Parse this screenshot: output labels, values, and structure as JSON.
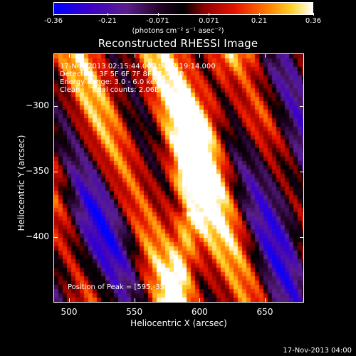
{
  "colorbar": {
    "tick_labels": [
      "-0.36",
      "-0.21",
      "-0.071",
      "0.071",
      "0.21",
      "0.36"
    ],
    "units_label": "(photons cm⁻² s⁻¹ asec⁻²)"
  },
  "title": "Reconstructed RHESSI Image",
  "info": {
    "line1": "17-Nov-2013 02:15:44.000 to 02:19:14.000",
    "line2": "Detectors: 3F 5F 6F 7F 8F 9F, Att 0",
    "line3": "Energy Range: 3.0 - 6.0 keV",
    "line4": "Clean     Total counts: 2.06E+04"
  },
  "peak_label": "Position of Peak = [595,-353]",
  "chart_data": {
    "type": "heatmap",
    "title": "Reconstructed RHESSI Image",
    "xlabel": "Heliocentric X (arcsec)",
    "ylabel": "Heliocentric Y (arcsec)",
    "xlim": [
      488,
      680
    ],
    "ylim": [
      -450,
      -260
    ],
    "x_ticks": [
      500,
      550,
      600,
      650
    ],
    "y_ticks": [
      -300,
      -350,
      -400
    ],
    "x_tick_labels": [
      "500",
      "550",
      "600",
      "650"
    ],
    "y_tick_labels": [
      "−300",
      "−350",
      "−400"
    ],
    "colorbar_range": [
      -0.36,
      0.36
    ],
    "peak": [
      595,
      -353
    ],
    "colormap": "blue-purple-black-red-orange-yellow-white"
  },
  "timestamp": "17-Nov-2013 04:00"
}
